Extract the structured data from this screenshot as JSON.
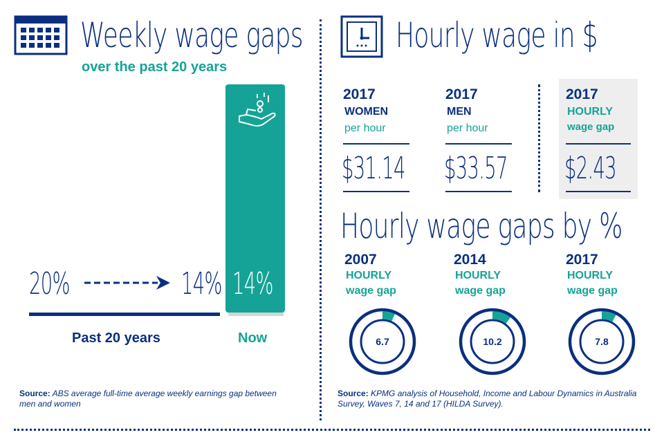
{
  "left": {
    "title": "Weekly wage gaps",
    "subtitle": "over the past 20 years",
    "past_value": "20%",
    "arrow_value": "14%",
    "now_value": "14%",
    "past_label": "Past 20 years",
    "now_label": "Now",
    "source_label": "Source:",
    "source_text": "ABS average full-time average weekly earnings gap between men and women",
    "icon_calendar": "calendar-icon",
    "icon_hand": "hand-coins-icon"
  },
  "right": {
    "title": "Hourly wage in $",
    "icon_clock": "clock-icon",
    "women": {
      "year": "2017",
      "label": "WOMEN",
      "unit": "per hour",
      "value": "$31.14"
    },
    "men": {
      "year": "2017",
      "label": "MEN",
      "unit": "per hour",
      "value": "$33.57"
    },
    "gap": {
      "year": "2017",
      "label": "HOURLY",
      "unit": "wage gap",
      "value": "$2.43"
    },
    "gaps_title": "Hourly wage gaps by %",
    "source_label": "Source:",
    "source_text": "KPMG analysis of Household, Income and Labour Dynamics in Australia Survey, Waves 7, 14 and 17 (HILDA Survey)."
  },
  "chart_data": [
    {
      "type": "bar",
      "categories": [
        "Past 20 years",
        "Now"
      ],
      "values": [
        20,
        14
      ],
      "value_labels": [
        "20%",
        "14%"
      ]
    },
    {
      "type": "pie",
      "categories": [
        "2007",
        "2014",
        "2017"
      ],
      "line1": [
        "HOURLY",
        "HOURLY",
        "HOURLY"
      ],
      "line2": [
        "wage gap",
        "wage gap",
        "wage gap"
      ],
      "values": [
        6.7,
        10.2,
        7.8
      ],
      "value_labels": [
        "6.7",
        "10.2",
        "7.8"
      ],
      "colors": {
        "ring": "#0a2f7f",
        "segment": "#16a397"
      }
    }
  ],
  "colors": {
    "navy": "#0a2f7f",
    "teal": "#16a397",
    "grey": "#eeeeee",
    "light_rule": "#d5d5d5"
  }
}
